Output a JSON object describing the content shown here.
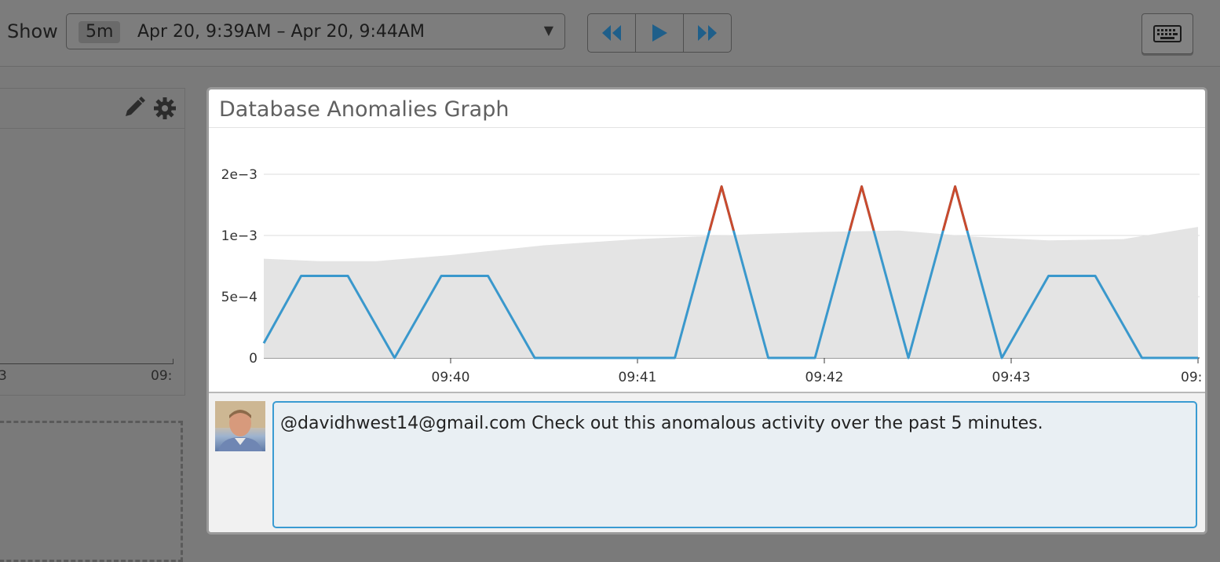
{
  "toolbar": {
    "show_label": "Show",
    "range_chip": "5m",
    "range_text": "Apr 20, 9:39AM – Apr 20, 9:44AM",
    "range_caret": "▼",
    "nav_buttons": [
      "rewind-icon",
      "play-icon",
      "fast-forward-icon"
    ],
    "keyboard_icon": "keyboard-icon"
  },
  "left_widget": {
    "tools": [
      "pencil-icon",
      "gear-icon"
    ],
    "tick_labels": [
      "3",
      "09:"
    ]
  },
  "modal": {
    "title": "Database Anomalies Graph"
  },
  "chart_data": {
    "type": "line",
    "y_tick_labels": [
      "0",
      "5e−4",
      "1e−3",
      "2e−3"
    ],
    "x_tick_labels": [
      "09:40",
      "09:41",
      "09:42",
      "09:43",
      "09:"
    ],
    "colors": {
      "line": "#3a98cc",
      "anomaly": "#c94a2d",
      "band": "#e4e4e4",
      "grid": "#dcdcdc"
    },
    "series": [
      {
        "values": [
          [
            0.0,
            0.00012
          ],
          [
            0.2,
            0.00067
          ],
          [
            0.45,
            0.00067
          ],
          [
            0.7,
            0.0
          ],
          [
            0.95,
            0.00067
          ],
          [
            1.2,
            0.00067
          ],
          [
            1.45,
            0.0
          ],
          [
            2.2,
            0.0
          ],
          [
            2.45,
            0.0014
          ],
          [
            2.7,
            0.0
          ],
          [
            2.95,
            0.0
          ],
          [
            3.2,
            0.0014
          ],
          [
            3.45,
            0.0
          ],
          [
            3.7,
            0.0014
          ],
          [
            3.95,
            0.0
          ],
          [
            4.2,
            0.00067
          ],
          [
            4.45,
            0.00067
          ],
          [
            4.7,
            0.0
          ],
          [
            5.0,
            0.0
          ]
        ]
      }
    ],
    "band_upper": [
      [
        0.0,
        0.00081
      ],
      [
        0.3,
        0.00079
      ],
      [
        0.6,
        0.00079
      ],
      [
        1.0,
        0.00084
      ],
      [
        1.5,
        0.00092
      ],
      [
        2.0,
        0.00097
      ],
      [
        2.3,
        0.00099
      ],
      [
        2.6,
        0.00101
      ],
      [
        3.0,
        0.00103
      ],
      [
        3.4,
        0.00104
      ],
      [
        3.8,
        0.00099
      ],
      [
        4.2,
        0.00096
      ],
      [
        4.6,
        0.00097
      ],
      [
        5.0,
        0.00107
      ]
    ],
    "anomaly_threshold": 0.00104
  },
  "comment": {
    "avatar": "user-avatar",
    "text": "@davidhwest14@gmail.com Check out this anomalous activity over the past 5 minutes."
  }
}
